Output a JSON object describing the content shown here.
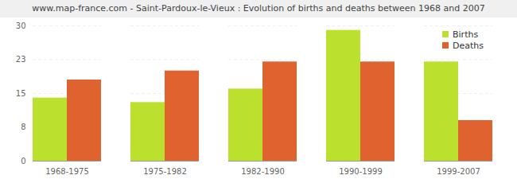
{
  "chart_data": {
    "type": "bar",
    "title": "www.map-france.com - Saint-Pardoux-le-Vieux : Evolution of births and deaths between 1968 and 2007",
    "categories": [
      "1968-1975",
      "1975-1982",
      "1982-1990",
      "1990-1999",
      "1999-2007"
    ],
    "series": [
      {
        "name": "Births",
        "color": "#bbe02e",
        "values": [
          14,
          13,
          16,
          29,
          22
        ]
      },
      {
        "name": "Deaths",
        "color": "#e0622f",
        "values": [
          18,
          20,
          22,
          22,
          9
        ]
      }
    ],
    "ylim": [
      0,
      30
    ],
    "yticks": [
      0,
      {
        "value": 7.5,
        "label": "8"
      },
      15,
      {
        "value": 22.5,
        "label": "23"
      },
      30
    ],
    "grid": true,
    "legend": "top-right"
  }
}
